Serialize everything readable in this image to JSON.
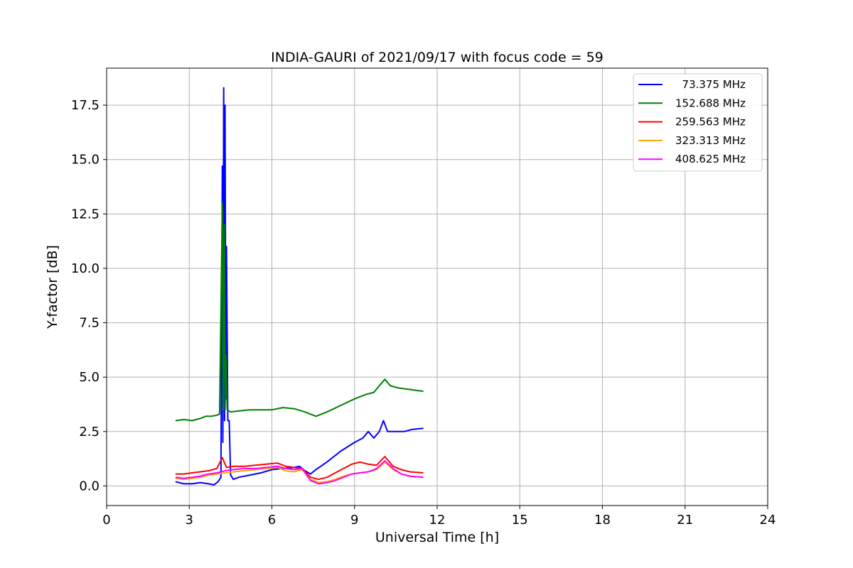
{
  "chart_data": {
    "type": "line",
    "title": "INDIA-GAURI of 2021/09/17 with focus code = 59",
    "xlabel": "Universal Time [h]",
    "ylabel": "Y-factor [dB]",
    "xlim": [
      0,
      24
    ],
    "ylim": [
      -0.9,
      19.2
    ],
    "xticks": [
      0,
      3,
      6,
      9,
      12,
      15,
      18,
      21,
      24
    ],
    "yticks": [
      0.0,
      2.5,
      5.0,
      7.5,
      10.0,
      12.5,
      15.0,
      17.5
    ],
    "xtick_labels": [
      "0",
      "3",
      "6",
      "9",
      "12",
      "15",
      "18",
      "21",
      "24"
    ],
    "ytick_labels": [
      "0.0",
      "2.5",
      "5.0",
      "7.5",
      "10.0",
      "12.5",
      "15.0",
      "17.5"
    ],
    "grid": true,
    "legend_position": "top-right",
    "series": [
      {
        "name": "  73.375 MHz",
        "color": "#0000ff",
        "points": [
          [
            2.5,
            0.2
          ],
          [
            2.8,
            0.1
          ],
          [
            3.1,
            0.1
          ],
          [
            3.4,
            0.15
          ],
          [
            3.7,
            0.1
          ],
          [
            3.9,
            0.05
          ],
          [
            4.05,
            0.2
          ],
          [
            4.15,
            0.4
          ],
          [
            4.2,
            14.7
          ],
          [
            4.22,
            2.0
          ],
          [
            4.25,
            18.3
          ],
          [
            4.28,
            3.0
          ],
          [
            4.3,
            17.5
          ],
          [
            4.33,
            4.0
          ],
          [
            4.35,
            11.0
          ],
          [
            4.4,
            3.0
          ],
          [
            4.45,
            3.0
          ],
          [
            4.5,
            0.5
          ],
          [
            4.6,
            0.3
          ],
          [
            4.8,
            0.4
          ],
          [
            5.2,
            0.5
          ],
          [
            5.6,
            0.6
          ],
          [
            6.0,
            0.75
          ],
          [
            6.4,
            0.8
          ],
          [
            6.8,
            0.85
          ],
          [
            7.0,
            0.9
          ],
          [
            7.2,
            0.7
          ],
          [
            7.4,
            0.55
          ],
          [
            7.6,
            0.75
          ],
          [
            8.0,
            1.1
          ],
          [
            8.5,
            1.6
          ],
          [
            9.0,
            2.0
          ],
          [
            9.3,
            2.2
          ],
          [
            9.5,
            2.5
          ],
          [
            9.7,
            2.2
          ],
          [
            9.9,
            2.5
          ],
          [
            10.05,
            3.0
          ],
          [
            10.2,
            2.5
          ],
          [
            10.5,
            2.5
          ],
          [
            10.8,
            2.5
          ],
          [
            11.1,
            2.6
          ],
          [
            11.5,
            2.65
          ]
        ]
      },
      {
        "name": "152.688 MHz",
        "color": "#008000",
        "points": [
          [
            2.5,
            3.0
          ],
          [
            2.8,
            3.05
          ],
          [
            3.1,
            3.0
          ],
          [
            3.4,
            3.1
          ],
          [
            3.6,
            3.2
          ],
          [
            3.8,
            3.2
          ],
          [
            4.0,
            3.25
          ],
          [
            4.1,
            3.3
          ],
          [
            4.2,
            13.0
          ],
          [
            4.23,
            3.5
          ],
          [
            4.27,
            12.0
          ],
          [
            4.3,
            3.5
          ],
          [
            4.33,
            6.0
          ],
          [
            4.38,
            3.5
          ],
          [
            4.5,
            3.4
          ],
          [
            4.8,
            3.45
          ],
          [
            5.2,
            3.5
          ],
          [
            5.6,
            3.5
          ],
          [
            6.0,
            3.5
          ],
          [
            6.4,
            3.6
          ],
          [
            6.8,
            3.55
          ],
          [
            7.2,
            3.4
          ],
          [
            7.6,
            3.2
          ],
          [
            8.0,
            3.4
          ],
          [
            8.5,
            3.7
          ],
          [
            9.0,
            4.0
          ],
          [
            9.4,
            4.2
          ],
          [
            9.7,
            4.3
          ],
          [
            9.9,
            4.6
          ],
          [
            10.1,
            4.9
          ],
          [
            10.3,
            4.6
          ],
          [
            10.6,
            4.5
          ],
          [
            10.9,
            4.45
          ],
          [
            11.2,
            4.4
          ],
          [
            11.5,
            4.35
          ]
        ]
      },
      {
        "name": "259.563 MHz",
        "color": "#ff0000",
        "points": [
          [
            2.5,
            0.55
          ],
          [
            2.8,
            0.55
          ],
          [
            3.1,
            0.6
          ],
          [
            3.4,
            0.65
          ],
          [
            3.7,
            0.7
          ],
          [
            4.0,
            0.8
          ],
          [
            4.2,
            1.3
          ],
          [
            4.35,
            0.85
          ],
          [
            4.6,
            0.9
          ],
          [
            5.0,
            0.9
          ],
          [
            5.4,
            0.95
          ],
          [
            5.8,
            1.0
          ],
          [
            6.2,
            1.05
          ],
          [
            6.5,
            0.9
          ],
          [
            6.8,
            0.85
          ],
          [
            7.1,
            0.8
          ],
          [
            7.4,
            0.4
          ],
          [
            7.7,
            0.3
          ],
          [
            8.0,
            0.4
          ],
          [
            8.3,
            0.6
          ],
          [
            8.6,
            0.8
          ],
          [
            8.9,
            1.0
          ],
          [
            9.2,
            1.1
          ],
          [
            9.5,
            1.0
          ],
          [
            9.8,
            0.95
          ],
          [
            10.1,
            1.35
          ],
          [
            10.4,
            0.9
          ],
          [
            10.7,
            0.75
          ],
          [
            11.0,
            0.65
          ],
          [
            11.5,
            0.6
          ]
        ]
      },
      {
        "name": "323.313 MHz",
        "color": "#ffa500",
        "points": [
          [
            2.5,
            0.35
          ],
          [
            2.8,
            0.3
          ],
          [
            3.1,
            0.35
          ],
          [
            3.4,
            0.4
          ],
          [
            3.7,
            0.5
          ],
          [
            4.0,
            0.55
          ],
          [
            4.3,
            0.6
          ],
          [
            4.6,
            0.65
          ],
          [
            5.0,
            0.7
          ],
          [
            5.4,
            0.75
          ],
          [
            5.8,
            0.8
          ],
          [
            6.2,
            0.85
          ],
          [
            6.5,
            0.7
          ],
          [
            6.8,
            0.65
          ],
          [
            7.1,
            0.75
          ],
          [
            7.4,
            0.3
          ],
          [
            7.7,
            0.15
          ],
          [
            8.0,
            0.2
          ],
          [
            8.3,
            0.3
          ],
          [
            8.6,
            0.45
          ],
          [
            8.9,
            0.55
          ],
          [
            9.2,
            0.6
          ],
          [
            9.5,
            0.65
          ],
          [
            9.8,
            0.75
          ],
          [
            10.1,
            1.1
          ],
          [
            10.4,
            0.75
          ],
          [
            10.7,
            0.55
          ],
          [
            11.0,
            0.45
          ],
          [
            11.5,
            0.4
          ]
        ]
      },
      {
        "name": "408.625 MHz",
        "color": "#ff00ff",
        "points": [
          [
            2.5,
            0.4
          ],
          [
            2.8,
            0.35
          ],
          [
            3.1,
            0.4
          ],
          [
            3.4,
            0.45
          ],
          [
            3.7,
            0.55
          ],
          [
            4.0,
            0.6
          ],
          [
            4.3,
            0.7
          ],
          [
            4.6,
            0.75
          ],
          [
            5.0,
            0.8
          ],
          [
            5.4,
            0.8
          ],
          [
            5.8,
            0.85
          ],
          [
            6.2,
            0.9
          ],
          [
            6.5,
            0.8
          ],
          [
            6.8,
            0.75
          ],
          [
            7.1,
            0.8
          ],
          [
            7.4,
            0.25
          ],
          [
            7.7,
            0.1
          ],
          [
            8.0,
            0.15
          ],
          [
            8.3,
            0.25
          ],
          [
            8.6,
            0.4
          ],
          [
            8.9,
            0.55
          ],
          [
            9.2,
            0.6
          ],
          [
            9.5,
            0.65
          ],
          [
            9.8,
            0.8
          ],
          [
            10.1,
            1.15
          ],
          [
            10.4,
            0.8
          ],
          [
            10.7,
            0.55
          ],
          [
            11.0,
            0.45
          ],
          [
            11.5,
            0.4
          ]
        ]
      }
    ]
  }
}
